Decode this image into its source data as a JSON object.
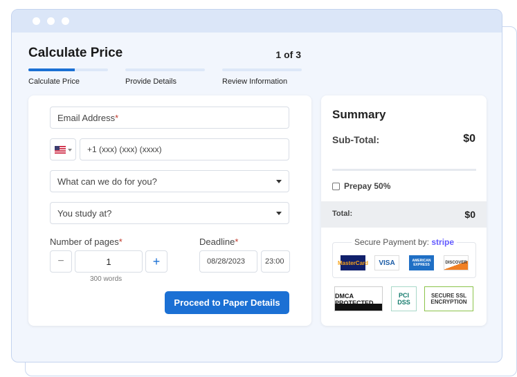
{
  "header": {
    "title": "Calculate Price",
    "step_counter": "1 of 3"
  },
  "steps": [
    {
      "label": "Calculate Price",
      "progress": 0.58
    },
    {
      "label": "Provide Details",
      "progress": 0
    },
    {
      "label": "Review Information",
      "progress": 0
    }
  ],
  "form": {
    "email_placeholder": "Email Address",
    "required_mark": "*",
    "phone_placeholder": "+1 (xxx) (xxx) (xxxx)",
    "service_placeholder": "What can we do for you?",
    "study_placeholder": "You study at?",
    "pages_label": "Number of pages",
    "pages_value": "1",
    "minus": "−",
    "plus": "+",
    "words": "300 words",
    "deadline_label": "Deadline",
    "date": "08/28/2023",
    "time": "23:00",
    "submit": "Proceed to Paper Details"
  },
  "summary": {
    "title": "Summary",
    "subtotal_label": "Sub-Total:",
    "subtotal": "$0",
    "prepay_label": "Prepay 50%",
    "total_label": "Total:",
    "total": "$0",
    "secure_label": "Secure Payment by:",
    "stripe": "stripe",
    "cards": [
      "MasterCard",
      "VISA",
      "AMERICAN EXPRESS",
      "DISCOVER"
    ],
    "badges": [
      "DMCA PROTECTED",
      "PCI DSS",
      "SECURE SSL ENCRYPTION"
    ]
  },
  "colors": {
    "accent": "#1b70d4",
    "stripe": "#635bff"
  }
}
